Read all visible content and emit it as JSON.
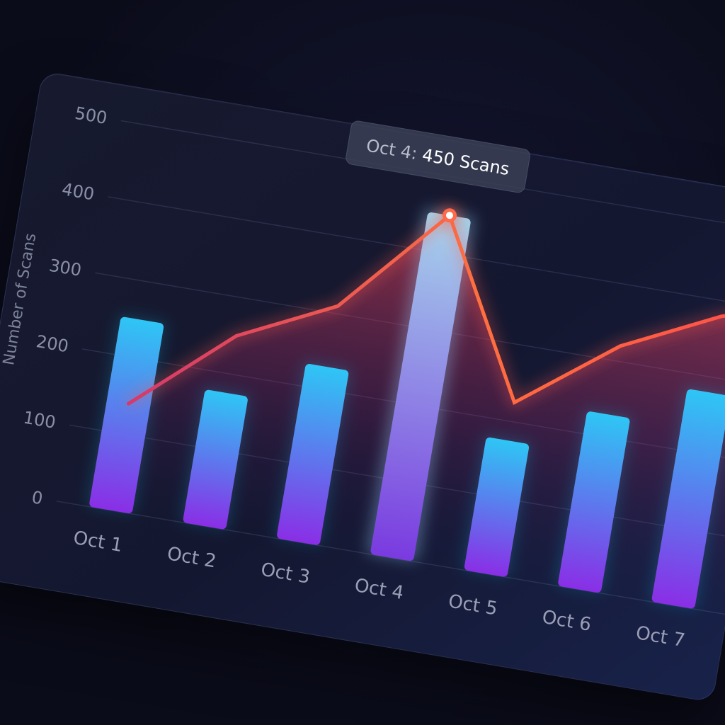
{
  "chart_data": {
    "type": "bar",
    "categories": [
      "Oct 1",
      "Oct 2",
      "Oct 3",
      "Oct 4",
      "Oct 5",
      "Oct 6",
      "Oct 7"
    ],
    "series": [
      {
        "type": "bar",
        "values": [
          250,
          175,
          230,
          450,
          175,
          230,
          280
        ]
      },
      {
        "type": "area",
        "x": [
          "Oct 1",
          "Oct 2",
          "Oct 3",
          "Oct 4",
          "Oct 5",
          "Oct 6",
          "Oct 7"
        ],
        "values": [
          140,
          250,
          310,
          450,
          225,
          320,
          380
        ]
      }
    ],
    "ylabel": "Number of Scans",
    "ylim": [
      0,
      500
    ],
    "yticks": [
      "0",
      "100",
      "200",
      "300",
      "400",
      "500"
    ],
    "grid": true,
    "annotation": {
      "prefix": "Oct 4: ",
      "value": "450 Scans",
      "category": "Oct 4",
      "y": 450
    },
    "colors": {
      "bar_top": "#2ec6f5",
      "bar_bottom": "#8a2ee6",
      "line_start": "#d6386a",
      "line_end": "#ff5a3c",
      "highlight_top": "#a8d8f0",
      "highlight_bottom": "#7a3ae0"
    }
  }
}
